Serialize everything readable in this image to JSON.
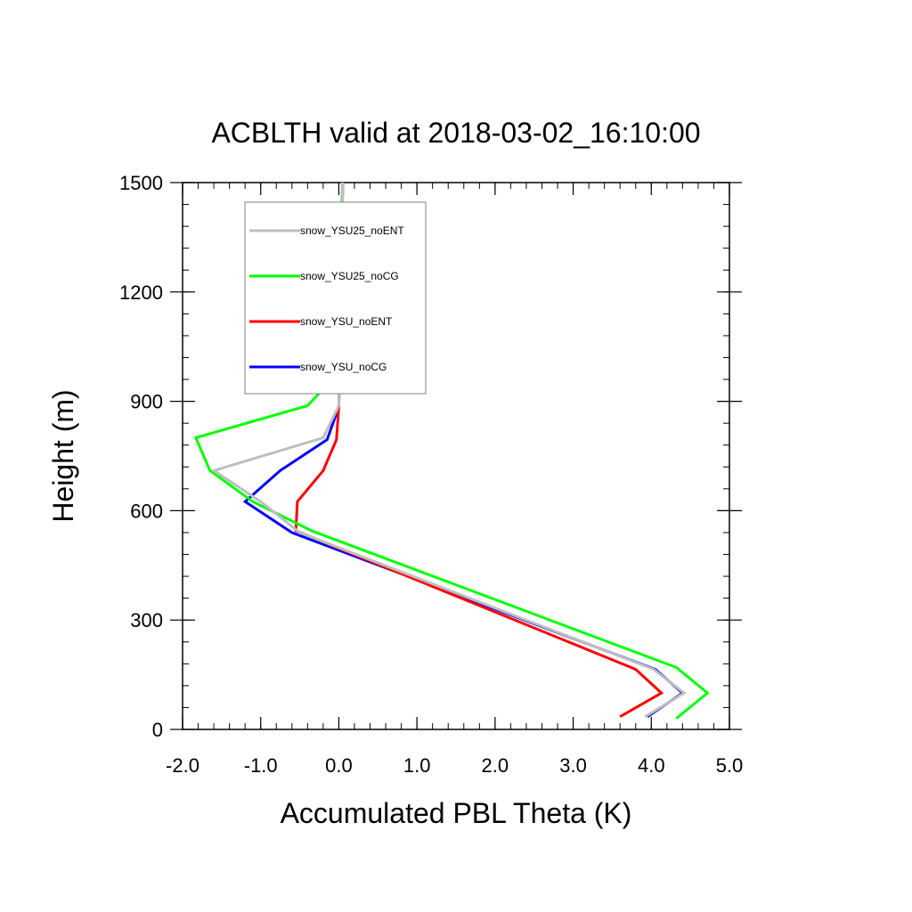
{
  "chart_data": {
    "type": "line",
    "title": "ACBLTH valid at 2018-03-02_16:10:00",
    "xlabel": "Accumulated PBL Theta (K)",
    "ylabel": "Height (m)",
    "xlim": [
      -2.0,
      5.0
    ],
    "ylim": [
      0,
      1500
    ],
    "xticks": [
      -2.0,
      -1.0,
      0.0,
      1.0,
      2.0,
      3.0,
      4.0,
      5.0
    ],
    "xtick_labels": [
      "-2.0",
      "-1.0",
      "0.0",
      "1.0",
      "2.0",
      "3.0",
      "4.0",
      "5.0"
    ],
    "yticks": [
      0,
      300,
      600,
      900,
      1200,
      1500
    ],
    "ytick_labels": [
      "0",
      "300",
      "600",
      "900",
      "1200",
      "1500"
    ],
    "grid": false,
    "legend_position": "top-left",
    "series": [
      {
        "name": "snow_YSU_noCG",
        "color": "#0000ff",
        "x": [
          3.95,
          4.4,
          4.05,
          -0.6,
          -1.2,
          -0.75,
          -0.15,
          0.0,
          0.01,
          0.02,
          0.03,
          0.04,
          0.05
        ],
        "y": [
          35,
          100,
          165,
          540,
          625,
          710,
          795,
          885,
          980,
          1100,
          1200,
          1350,
          1500
        ]
      },
      {
        "name": "snow_YSU_noENT",
        "color": "#ff0000",
        "x": [
          3.6,
          4.13,
          3.8,
          -0.55,
          -0.53,
          -0.2,
          -0.03,
          0.0,
          0.01,
          0.02,
          0.03,
          0.04,
          0.05
        ],
        "y": [
          35,
          100,
          165,
          545,
          625,
          710,
          795,
          885,
          980,
          1100,
          1200,
          1350,
          1500
        ]
      },
      {
        "name": "snow_YSU25_noCG",
        "color": "#00ff00",
        "x": [
          4.32,
          4.72,
          4.32,
          -0.35,
          -1.1,
          -1.65,
          -1.83,
          -0.4,
          0.0,
          0.01,
          0.02,
          0.03,
          0.04,
          0.05
        ],
        "y": [
          30,
          100,
          170,
          545,
          625,
          710,
          800,
          888,
          980,
          1100,
          1200,
          1350,
          1450,
          1500
        ]
      },
      {
        "name": "snow_YSU25_noENT",
        "color": "#bebebe",
        "x": [
          3.92,
          4.42,
          4.03,
          -0.5,
          -1.0,
          -1.6,
          -0.2,
          0.0,
          0.01,
          0.02,
          0.03,
          0.04,
          0.05
        ],
        "y": [
          35,
          100,
          165,
          540,
          625,
          710,
          800,
          888,
          980,
          1100,
          1200,
          1350,
          1500
        ]
      }
    ],
    "legend_order": [
      "snow_YSU25_noENT",
      "snow_YSU25_noCG",
      "snow_YSU_noENT",
      "snow_YSU_noCG"
    ]
  }
}
